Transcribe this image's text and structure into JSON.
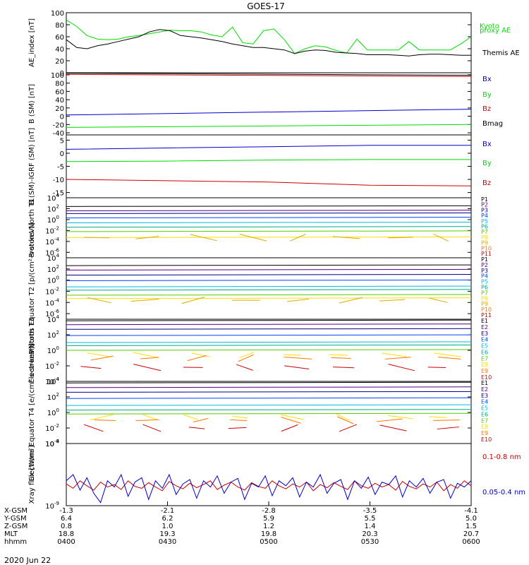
{
  "title": "GOES-17",
  "date": "2020 Jun 22",
  "colors": {
    "black": "#000000",
    "green": "#00dd00",
    "blue": "#0000cc",
    "red": "#cc0000",
    "purple": "#550088",
    "navy": "#000088",
    "mid_blue": "#0044ff",
    "cyan": "#00bbdd",
    "teal": "#00aa88",
    "lime": "#55cc00",
    "yellow": "#ffdd00",
    "gold": "#ddaa00",
    "orange": "#ff7700",
    "dark_red": "#cc0000",
    "maroon": "#990000"
  },
  "chart_data": [
    {
      "type": "line",
      "ylabel": "AE_index [nT]",
      "ylim": [
        0,
        100
      ],
      "yscale": "linear",
      "yticks": [
        "0",
        "20",
        "40",
        "60",
        "80",
        "100"
      ],
      "series": [
        {
          "name": "Kyoto proxy AE",
          "color": "#00dd00",
          "values": [
            88,
            77,
            62,
            56,
            55,
            56,
            60,
            62,
            65,
            68,
            71,
            70,
            70,
            68,
            63,
            60,
            76,
            50,
            48,
            70,
            73,
            55,
            32,
            40,
            45,
            43,
            37,
            33,
            56,
            38,
            38,
            38,
            38,
            52,
            38,
            38,
            38,
            38,
            48,
            60
          ]
        },
        {
          "name": "Themis AE",
          "color": "#000000",
          "values": [
            55,
            42,
            40,
            45,
            48,
            52,
            56,
            60,
            68,
            72,
            70,
            62,
            60,
            58,
            55,
            52,
            48,
            45,
            42,
            42,
            40,
            38,
            32,
            36,
            38,
            37,
            34,
            33,
            32,
            30,
            30,
            30,
            29,
            28,
            30,
            31,
            31,
            30,
            29,
            29
          ]
        }
      ]
    },
    {
      "type": "line",
      "ylabel": "B (SM) [nT]",
      "ylim": [
        -45,
        105
      ],
      "yscale": "linear",
      "yticks": [
        "-40",
        "-20",
        "0",
        "20",
        "40",
        "60",
        "80",
        "100"
      ],
      "series": [
        {
          "name": "Bx",
          "color": "#0000cc",
          "values": [
            3,
            17
          ]
        },
        {
          "name": "By",
          "color": "#00dd00",
          "values": [
            -27,
            -20
          ]
        },
        {
          "name": "Bz",
          "color": "#cc0000",
          "values": [
            101,
            96
          ]
        },
        {
          "name": "Bmag",
          "color": "#000000",
          "values": [
            104,
            99
          ]
        }
      ]
    },
    {
      "type": "line",
      "ylabel": "B (SM)-IGRF (SM) [nT]",
      "ylim": [
        -17,
        7
      ],
      "yscale": "linear",
      "yticks": [
        "-15",
        "-10",
        "-5",
        "0",
        "5"
      ],
      "series": [
        {
          "name": "Bx",
          "color": "#0000cc",
          "values": [
            1.5,
            2.0,
            2.5,
            3.0,
            3.0
          ]
        },
        {
          "name": "By",
          "color": "#00dd00",
          "values": [
            -3.2,
            -3.0,
            -2.6,
            -2.4,
            -2.4
          ]
        },
        {
          "name": "Bz",
          "color": "#cc0000",
          "values": [
            -10.0,
            -10.5,
            -11.0,
            -12.2,
            -12.5
          ]
        }
      ]
    },
    {
      "type": "line",
      "ylabel": "Protons North T1",
      "yscale": "log",
      "ylim_exp": [
        -7,
        4
      ],
      "ytick_exps": [
        -6,
        -4,
        -2,
        0,
        2,
        4
      ],
      "series": [
        {
          "name": "P1",
          "color": "#000000",
          "log10": 2.4
        },
        {
          "name": "P2",
          "color": "#550088",
          "log10": 1.6
        },
        {
          "name": "P3",
          "color": "#000088",
          "log10": 1.1
        },
        {
          "name": "P4",
          "color": "#0044ff",
          "log10": 0.3
        },
        {
          "name": "P5",
          "color": "#00bbdd",
          "log10": -0.6
        },
        {
          "name": "P6",
          "color": "#00aa88",
          "log10": -1.4
        },
        {
          "name": "P7",
          "color": "#55cc00",
          "log10": -2.2
        },
        {
          "name": "P8",
          "color": "#ffdd00",
          "log10": -3.3
        },
        {
          "name": "P9",
          "color": "#ddaa00",
          "log10": -3.3
        },
        {
          "name": "P10",
          "color": "#ff7700",
          "log10": null
        },
        {
          "name": "P11",
          "color": "#cc0000",
          "log10": null
        }
      ]
    },
    {
      "type": "line",
      "ylabel": "Protons Equator T2 [p/(cm²-s-sr-keV)]",
      "yscale": "log",
      "ylim_exp": [
        -7,
        4
      ],
      "ytick_exps": [
        -6,
        -4,
        -2,
        0,
        2,
        4
      ],
      "series": [
        {
          "name": "P1",
          "color": "#000000",
          "log10": 2.6
        },
        {
          "name": "P2",
          "color": "#550088",
          "log10": 1.8
        },
        {
          "name": "P3",
          "color": "#000088",
          "log10": 0.9
        },
        {
          "name": "P4",
          "color": "#0044ff",
          "log10": -0.1
        },
        {
          "name": "P5",
          "color": "#00bbdd",
          "log10": -1.2
        },
        {
          "name": "P6",
          "color": "#00aa88",
          "log10": -1.8
        },
        {
          "name": "P7",
          "color": "#55cc00",
          "log10": -2.7
        },
        {
          "name": "P8",
          "color": "#ffdd00",
          "log10": -3.3
        },
        {
          "name": "P9",
          "color": "#ddaa00",
          "log10": -3.6
        },
        {
          "name": "P10",
          "color": "#ff7700",
          "log10": null
        },
        {
          "name": "P11",
          "color": "#cc0000",
          "log10": null
        }
      ]
    },
    {
      "type": "line",
      "ylabel": "Electrons North T3",
      "yscale": "log",
      "ylim_exp": [
        -4,
        4
      ],
      "ytick_exps": [
        -4,
        -2,
        0,
        2,
        4
      ],
      "series": [
        {
          "name": "E1",
          "color": "#000000",
          "log10": 3.8
        },
        {
          "name": "E2",
          "color": "#550088",
          "log10": 3.3
        },
        {
          "name": "E3",
          "color": "#000088",
          "log10": 2.7
        },
        {
          "name": "E4",
          "color": "#0044ff",
          "log10": 1.9
        },
        {
          "name": "E5",
          "color": "#00bbdd",
          "log10": 1.0
        },
        {
          "name": "E6",
          "color": "#00aa88",
          "log10": 0.6
        },
        {
          "name": "E7",
          "color": "#55cc00",
          "log10": 0.0
        },
        {
          "name": "E8",
          "color": "#ffdd00",
          "log10": -0.6
        },
        {
          "name": "E9",
          "color": "#ff7700",
          "log10": -1.0
        },
        {
          "name": "E10",
          "color": "#cc0000",
          "log10": -2.2
        }
      ]
    },
    {
      "type": "line",
      "ylabel": "Electrons Equator T4 [e/(cm²-s-sr-keV)]",
      "yscale": "log",
      "ylim_exp": [
        -4,
        4
      ],
      "ytick_exps": [
        -4,
        -2,
        0,
        2,
        4
      ],
      "series": [
        {
          "name": "E1",
          "color": "#000000",
          "log10": 3.8
        },
        {
          "name": "E2",
          "color": "#550088",
          "log10": 3.2
        },
        {
          "name": "E3",
          "color": "#000088",
          "log10": 2.6
        },
        {
          "name": "E4",
          "color": "#0044ff",
          "log10": 1.8
        },
        {
          "name": "E5",
          "color": "#00bbdd",
          "log10": 0.9
        },
        {
          "name": "E6",
          "color": "#00aa88",
          "log10": 0.3
        },
        {
          "name": "E7",
          "color": "#55cc00",
          "log10": -0.2
        },
        {
          "name": "E8",
          "color": "#ffdd00",
          "log10": -0.6
        },
        {
          "name": "E9",
          "color": "#ff7700",
          "log10": -1.0
        },
        {
          "name": "E10",
          "color": "#cc0000",
          "log10": -2.0
        }
      ]
    },
    {
      "type": "line",
      "ylabel": "Xray flux [W/m²]",
      "yscale": "log",
      "ylim_exp": [
        -9,
        -8
      ],
      "ytick_exps": [
        -9,
        -8
      ],
      "series": [
        {
          "name": "0.1-0.8 nm",
          "color": "#cc0000",
          "values": [
            -8.65,
            -8.72,
            -8.6,
            -8.68,
            -8.75,
            -8.62,
            -8.7,
            -8.66,
            -8.74,
            -8.6,
            -8.69,
            -8.72,
            -8.63,
            -8.7,
            -8.76,
            -8.61,
            -8.68,
            -8.73,
            -8.64,
            -8.71,
            -8.66,
            -8.6,
            -8.74,
            -8.67,
            -8.62,
            -8.7,
            -8.75,
            -8.63,
            -8.69,
            -8.72,
            -8.6,
            -8.68,
            -8.73,
            -8.65,
            -8.7,
            -8.62,
            -8.76,
            -8.66,
            -8.71,
            -8.63,
            -8.69,
            -8.74,
            -8.6,
            -8.68,
            -8.72,
            -8.64,
            -8.7,
            -8.66,
            -8.75,
            -8.61,
            -8.69,
            -8.73,
            -8.65,
            -8.7,
            -8.62,
            -8.76,
            -8.66,
            -8.72,
            -8.6,
            -8.68
          ]
        },
        {
          "name": "0.05-0.4 nm",
          "color": "#0000cc",
          "values": [
            -8.6,
            -8.5,
            -8.75,
            -8.55,
            -8.8,
            -8.95,
            -8.6,
            -8.7,
            -8.5,
            -8.85,
            -8.62,
            -8.55,
            -8.9,
            -8.6,
            -8.72,
            -8.5,
            -8.82,
            -8.65,
            -8.58,
            -8.88,
            -8.6,
            -8.7,
            -8.52,
            -8.8,
            -8.62,
            -8.56,
            -8.9,
            -8.64,
            -8.7,
            -8.52,
            -8.84,
            -8.6,
            -8.68,
            -8.55,
            -8.86,
            -8.62,
            -8.7,
            -8.5,
            -8.8,
            -8.64,
            -8.58,
            -8.9,
            -8.6,
            -8.72,
            -8.54,
            -8.82,
            -8.62,
            -8.66,
            -8.52,
            -8.86,
            -8.6,
            -8.7,
            -8.56,
            -8.8,
            -8.62,
            -8.58,
            -8.88,
            -8.64,
            -8.7,
            -8.6
          ]
        }
      ]
    }
  ],
  "x_axis": {
    "rows": [
      {
        "label": "X-GSM",
        "values": [
          "-1.3",
          "-2.1",
          "-2.8",
          "-3.5",
          "-4.1"
        ]
      },
      {
        "label": "Y-GSM",
        "values": [
          "6.4",
          "6.2",
          "5.9",
          "5.5",
          "5.0"
        ]
      },
      {
        "label": "Z-GSM",
        "values": [
          "0.8",
          "1.0",
          "1.2",
          "1.4",
          "1.5"
        ]
      },
      {
        "label": "MLT",
        "values": [
          "18.8",
          "19.3",
          "19.8",
          "20.3",
          "20.7"
        ]
      },
      {
        "label": "hhmm",
        "values": [
          "0400",
          "0430",
          "0500",
          "0530",
          "0600"
        ]
      }
    ]
  }
}
